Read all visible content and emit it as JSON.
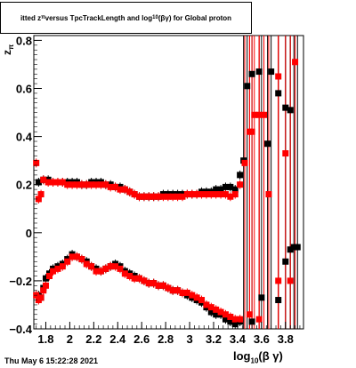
{
  "title_parts": {
    "prefix": "itted  z",
    "sub1": "π",
    "mid": "  versus TpcTrackLength and log",
    "sub2": "10",
    "suffix": "(βγ) for Global proton"
  },
  "footer": "Thu May  6 15:22:28 2021",
  "xlabel_parts": {
    "prefix": "log",
    "sub": "10",
    "suffix": "(β γ)"
  },
  "ylabel_parts": {
    "main": "z",
    "sub": "π"
  },
  "colors": {
    "series_black": "#000000",
    "series_red": "#ff0000"
  },
  "chart_data": {
    "type": "scatter",
    "xlim": [
      1.7,
      3.95
    ],
    "ylim": [
      -0.4,
      0.82
    ],
    "x_ticks": [
      {
        "v": 1.8,
        "label": "1.8"
      },
      {
        "v": 2.0,
        "label": "2"
      },
      {
        "v": 2.2,
        "label": "2.2"
      },
      {
        "v": 2.4,
        "label": "2.4"
      },
      {
        "v": 2.6,
        "label": "2.6"
      },
      {
        "v": 2.8,
        "label": "2.8"
      },
      {
        "v": 3.0,
        "label": "3"
      },
      {
        "v": 3.2,
        "label": "3.2"
      },
      {
        "v": 3.4,
        "label": "3.4"
      },
      {
        "v": 3.6,
        "label": "3.6"
      },
      {
        "v": 3.8,
        "label": "3.8"
      }
    ],
    "y_ticks": [
      {
        "v": -0.4,
        "label": "−0.4"
      },
      {
        "v": -0.2,
        "label": "−0.2"
      },
      {
        "v": 0.0,
        "label": "0"
      },
      {
        "v": 0.2,
        "label": "0.2"
      },
      {
        "v": 0.4,
        "label": "0.4"
      },
      {
        "v": 0.6,
        "label": "0.6"
      },
      {
        "v": 0.8,
        "label": "0.8"
      }
    ],
    "series": [
      {
        "color": "black",
        "points": [
          [
            1.74,
            -0.26
          ],
          [
            1.76,
            -0.27
          ],
          [
            1.78,
            -0.23
          ],
          [
            1.8,
            -0.19
          ],
          [
            1.83,
            -0.17
          ],
          [
            1.86,
            -0.15
          ],
          [
            1.9,
            -0.14
          ],
          [
            1.94,
            -0.13
          ],
          [
            1.98,
            -0.11
          ],
          [
            2.02,
            -0.09
          ],
          [
            2.06,
            -0.1
          ],
          [
            2.1,
            -0.11
          ],
          [
            2.14,
            -0.12
          ],
          [
            2.18,
            -0.14
          ],
          [
            2.22,
            -0.15
          ],
          [
            2.26,
            -0.16
          ],
          [
            2.3,
            -0.15
          ],
          [
            2.34,
            -0.14
          ],
          [
            2.38,
            -0.13
          ],
          [
            2.42,
            -0.14
          ],
          [
            2.46,
            -0.16
          ],
          [
            2.5,
            -0.17
          ],
          [
            2.54,
            -0.18
          ],
          [
            2.58,
            -0.19
          ],
          [
            2.62,
            -0.2
          ],
          [
            2.66,
            -0.21
          ],
          [
            2.7,
            -0.21
          ],
          [
            2.74,
            -0.22
          ],
          [
            2.78,
            -0.22
          ],
          [
            2.82,
            -0.23
          ],
          [
            2.86,
            -0.24
          ],
          [
            2.9,
            -0.24
          ],
          [
            2.94,
            -0.25
          ],
          [
            2.98,
            -0.26
          ],
          [
            3.02,
            -0.27
          ],
          [
            3.06,
            -0.28
          ],
          [
            3.1,
            -0.29
          ],
          [
            3.14,
            -0.31
          ],
          [
            3.18,
            -0.33
          ],
          [
            3.22,
            -0.34
          ],
          [
            3.26,
            -0.34
          ],
          [
            3.3,
            -0.36
          ],
          [
            3.34,
            -0.37
          ],
          [
            3.38,
            -0.38
          ],
          [
            3.42,
            -0.37
          ],
          [
            3.52,
            -0.37
          ],
          [
            3.6,
            -0.27
          ],
          [
            3.74,
            -0.28
          ],
          [
            3.8,
            -0.12
          ],
          [
            3.84,
            -0.07
          ],
          [
            3.87,
            -0.06
          ],
          [
            3.9,
            -0.06
          ],
          [
            1.74,
            0.21
          ],
          [
            1.78,
            0.22
          ],
          [
            1.82,
            0.22
          ],
          [
            1.86,
            0.21
          ],
          [
            1.9,
            0.21
          ],
          [
            1.94,
            0.21
          ],
          [
            1.98,
            0.21
          ],
          [
            2.02,
            0.21
          ],
          [
            2.06,
            0.21
          ],
          [
            2.1,
            0.2
          ],
          [
            2.14,
            0.2
          ],
          [
            2.18,
            0.21
          ],
          [
            2.22,
            0.21
          ],
          [
            2.26,
            0.21
          ],
          [
            2.3,
            0.2
          ],
          [
            2.34,
            0.2
          ],
          [
            2.38,
            0.19
          ],
          [
            2.42,
            0.19
          ],
          [
            2.46,
            0.18
          ],
          [
            2.5,
            0.17
          ],
          [
            2.54,
            0.16
          ],
          [
            2.58,
            0.15
          ],
          [
            2.62,
            0.15
          ],
          [
            2.66,
            0.15
          ],
          [
            2.7,
            0.15
          ],
          [
            2.74,
            0.15
          ],
          [
            2.78,
            0.16
          ],
          [
            2.82,
            0.16
          ],
          [
            2.86,
            0.16
          ],
          [
            2.9,
            0.16
          ],
          [
            2.94,
            0.16
          ],
          [
            2.98,
            0.16
          ],
          [
            3.02,
            0.16
          ],
          [
            3.06,
            0.16
          ],
          [
            3.1,
            0.17
          ],
          [
            3.14,
            0.17
          ],
          [
            3.18,
            0.17
          ],
          [
            3.22,
            0.18
          ],
          [
            3.26,
            0.18
          ],
          [
            3.3,
            0.19
          ],
          [
            3.34,
            0.19
          ],
          [
            3.38,
            0.18
          ],
          [
            3.42,
            0.24
          ],
          [
            3.45,
            0.3
          ],
          [
            3.48,
            0.61
          ],
          [
            3.52,
            0.66
          ],
          [
            3.58,
            0.67
          ],
          [
            3.65,
            0.37
          ],
          [
            3.68,
            0.67
          ],
          [
            3.74,
            0.58
          ],
          [
            3.8,
            0.52
          ],
          [
            3.84,
            0.51
          ]
        ]
      },
      {
        "color": "red",
        "points": [
          [
            1.72,
            0.29
          ],
          [
            1.74,
            0.14
          ],
          [
            1.76,
            0.16
          ],
          [
            1.78,
            0.22
          ],
          [
            1.82,
            0.21
          ],
          [
            1.86,
            0.21
          ],
          [
            1.9,
            0.21
          ],
          [
            1.94,
            0.21
          ],
          [
            1.98,
            0.2
          ],
          [
            2.02,
            0.2
          ],
          [
            2.06,
            0.2
          ],
          [
            2.1,
            0.2
          ],
          [
            2.14,
            0.2
          ],
          [
            2.18,
            0.2
          ],
          [
            2.22,
            0.2
          ],
          [
            2.26,
            0.2
          ],
          [
            2.3,
            0.2
          ],
          [
            2.34,
            0.19
          ],
          [
            2.38,
            0.19
          ],
          [
            2.42,
            0.18
          ],
          [
            2.46,
            0.18
          ],
          [
            2.5,
            0.17
          ],
          [
            2.54,
            0.16
          ],
          [
            2.58,
            0.15
          ],
          [
            2.62,
            0.15
          ],
          [
            2.66,
            0.15
          ],
          [
            2.7,
            0.15
          ],
          [
            2.74,
            0.15
          ],
          [
            2.78,
            0.15
          ],
          [
            2.82,
            0.15
          ],
          [
            2.86,
            0.15
          ],
          [
            2.9,
            0.15
          ],
          [
            2.94,
            0.15
          ],
          [
            2.98,
            0.16
          ],
          [
            3.02,
            0.16
          ],
          [
            3.06,
            0.16
          ],
          [
            3.1,
            0.16
          ],
          [
            3.14,
            0.16
          ],
          [
            3.18,
            0.16
          ],
          [
            3.22,
            0.16
          ],
          [
            3.26,
            0.16
          ],
          [
            3.3,
            0.16
          ],
          [
            3.34,
            0.15
          ],
          [
            3.38,
            0.16
          ],
          [
            3.42,
            0.2
          ],
          [
            3.46,
            0.29
          ],
          [
            3.5,
            0.42
          ],
          [
            3.52,
            0.42
          ],
          [
            3.54,
            0.49
          ],
          [
            3.58,
            0.49
          ],
          [
            3.62,
            0.49
          ],
          [
            3.66,
            0.16
          ],
          [
            3.74,
            0.65
          ],
          [
            3.8,
            0.33
          ],
          [
            3.88,
            0.71
          ],
          [
            1.72,
            -0.26
          ],
          [
            1.74,
            -0.28
          ],
          [
            1.76,
            -0.27
          ],
          [
            1.78,
            -0.24
          ],
          [
            1.8,
            -0.22
          ],
          [
            1.83,
            -0.18
          ],
          [
            1.86,
            -0.16
          ],
          [
            1.9,
            -0.15
          ],
          [
            1.94,
            -0.14
          ],
          [
            1.98,
            -0.12
          ],
          [
            2.02,
            -0.1
          ],
          [
            2.06,
            -0.1
          ],
          [
            2.1,
            -0.11
          ],
          [
            2.14,
            -0.13
          ],
          [
            2.18,
            -0.14
          ],
          [
            2.22,
            -0.16
          ],
          [
            2.26,
            -0.16
          ],
          [
            2.3,
            -0.15
          ],
          [
            2.34,
            -0.14
          ],
          [
            2.38,
            -0.14
          ],
          [
            2.42,
            -0.15
          ],
          [
            2.46,
            -0.17
          ],
          [
            2.5,
            -0.18
          ],
          [
            2.54,
            -0.19
          ],
          [
            2.58,
            -0.19
          ],
          [
            2.62,
            -0.2
          ],
          [
            2.66,
            -0.21
          ],
          [
            2.7,
            -0.21
          ],
          [
            2.74,
            -0.22
          ],
          [
            2.78,
            -0.22
          ],
          [
            2.82,
            -0.23
          ],
          [
            2.86,
            -0.24
          ],
          [
            2.9,
            -0.24
          ],
          [
            2.94,
            -0.25
          ],
          [
            2.98,
            -0.25
          ],
          [
            3.02,
            -0.26
          ],
          [
            3.06,
            -0.27
          ],
          [
            3.1,
            -0.28
          ],
          [
            3.14,
            -0.3
          ],
          [
            3.18,
            -0.31
          ],
          [
            3.22,
            -0.32
          ],
          [
            3.26,
            -0.33
          ],
          [
            3.3,
            -0.34
          ],
          [
            3.34,
            -0.35
          ],
          [
            3.38,
            -0.36
          ],
          [
            3.42,
            -0.36
          ],
          [
            3.5,
            -0.34
          ],
          [
            3.58,
            -0.36
          ],
          [
            3.74,
            -0.2
          ],
          [
            3.84,
            -0.2
          ]
        ]
      }
    ]
  }
}
